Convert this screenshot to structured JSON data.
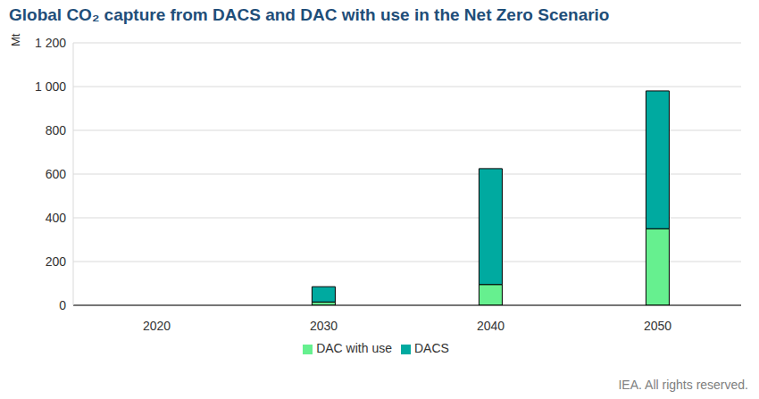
{
  "chart_data": {
    "type": "bar",
    "title": "Global CO₂ capture from DACS and DAC with use in the Net Zero Scenario",
    "y_label": "Mt",
    "source": "IEA. All rights reserved.",
    "categories": [
      "2020",
      "2030",
      "2040",
      "2050"
    ],
    "series": [
      {
        "name": "DAC with use",
        "color": "#66f08f",
        "values": [
          0,
          15,
          95,
          350
        ]
      },
      {
        "name": "DACS",
        "color": "#00aaa0",
        "values": [
          0,
          70,
          530,
          630
        ]
      }
    ],
    "stacked": true,
    "ylim": [
      0,
      1200
    ],
    "yticks": [
      0,
      200,
      400,
      600,
      800,
      {
        "value": 1000,
        "label": "1 000"
      },
      {
        "value": 1200,
        "label": "1 200"
      }
    ],
    "grid": true,
    "legend": "bottom"
  }
}
